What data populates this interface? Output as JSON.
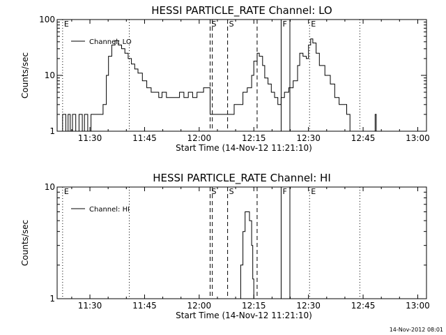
{
  "footer": {
    "timestamp": "14-Nov-2012 08:01"
  },
  "chart_data": [
    {
      "type": "line",
      "title": "HESSI PARTICLE_RATE Channel: LO",
      "xlabel": "Start Time (14-Nov-12 11:21:10)",
      "ylabel": "Counts/sec",
      "yscale": "log",
      "xlim": [
        11.35,
        13.04
      ],
      "ylim": [
        1,
        100
      ],
      "xticks": [
        11.5,
        11.75,
        12.0,
        12.25,
        12.5,
        12.75,
        13.0
      ],
      "xtick_labels": [
        "11:30",
        "11:45",
        "12:00",
        "12:15",
        "12:30",
        "12:45",
        "13:00"
      ],
      "yticks": [
        1,
        10,
        100
      ],
      "ytick_labels": [
        "1",
        "10",
        "100"
      ],
      "legend": {
        "position": "top-left",
        "entries": [
          "Channel: LO"
        ]
      },
      "series": [
        {
          "name": "Channel: LO",
          "x": [
            11.36,
            11.375,
            11.39,
            11.4,
            11.41,
            11.42,
            11.435,
            11.45,
            11.465,
            11.475,
            11.49,
            11.505,
            11.52,
            11.535,
            11.55,
            11.56,
            11.575,
            11.585,
            11.6,
            11.615,
            11.63,
            11.645,
            11.66,
            11.675,
            11.69,
            11.705,
            11.72,
            11.74,
            11.76,
            11.78,
            11.8,
            11.815,
            11.83,
            11.85,
            11.87,
            11.89,
            11.91,
            11.93,
            11.95,
            11.97,
            11.99,
            12.01,
            12.02,
            12.05,
            12.09,
            12.11,
            12.13,
            12.15,
            12.16,
            12.18,
            12.2,
            12.22,
            12.24,
            12.25,
            12.265,
            12.275,
            12.29,
            12.3,
            12.315,
            12.33,
            12.345,
            12.36,
            12.375,
            12.39,
            12.41,
            12.43,
            12.45,
            12.46,
            12.475,
            12.49,
            12.5,
            12.51,
            12.52,
            12.535,
            12.55,
            12.575,
            12.6,
            12.62,
            12.64,
            12.655,
            12.665,
            12.675,
            12.69,
            12.71,
            12.73,
            12.75,
            12.78,
            12.8,
            12.805,
            12.81
          ],
          "values": [
            1,
            2,
            1,
            2,
            1,
            2,
            1,
            2,
            1,
            2,
            1,
            2,
            2,
            2,
            2,
            3,
            10,
            22,
            35,
            42,
            35,
            30,
            25,
            20,
            16,
            13,
            11,
            8,
            6,
            5,
            5,
            4,
            5,
            4,
            4,
            4,
            5,
            4,
            5,
            4,
            5,
            5,
            6,
            2,
            2,
            2,
            2,
            2,
            3,
            3,
            5,
            6,
            10,
            18,
            25,
            22,
            15,
            9,
            7,
            5,
            4,
            3,
            4,
            5,
            6,
            8,
            15,
            25,
            22,
            20,
            35,
            45,
            38,
            25,
            15,
            10,
            7,
            4,
            3,
            3,
            3,
            2,
            1,
            1,
            1,
            1,
            1,
            1,
            2,
            1
          ]
        }
      ],
      "annotations": [
        {
          "x": 11.375,
          "label": "E",
          "style": "dotted"
        },
        {
          "x": 11.68,
          "label": "",
          "style": "dotted"
        },
        {
          "x": 12.05,
          "label": "S",
          "style": "dashed"
        },
        {
          "x": 12.06,
          "label": "",
          "style": "dashed"
        },
        {
          "x": 12.13,
          "label": "S",
          "style": "dashed"
        },
        {
          "x": 12.265,
          "label": "",
          "style": "dashed"
        },
        {
          "x": 12.375,
          "label": "F",
          "style": "solid"
        },
        {
          "x": 12.415,
          "label": "",
          "style": "solid"
        },
        {
          "x": 12.505,
          "label": "E",
          "style": "dotted"
        },
        {
          "x": 12.735,
          "label": "",
          "style": "dotted"
        }
      ]
    },
    {
      "type": "line",
      "title": "HESSI PARTICLE_RATE Channel: HI",
      "xlabel": "Start Time (14-Nov-12 11:21:10)",
      "ylabel": "Counts/sec",
      "yscale": "log",
      "xlim": [
        11.35,
        13.04
      ],
      "ylim": [
        1,
        10
      ],
      "xticks": [
        11.5,
        11.75,
        12.0,
        12.25,
        12.5,
        12.75,
        13.0
      ],
      "xtick_labels": [
        "11:30",
        "11:45",
        "12:00",
        "12:15",
        "12:30",
        "12:45",
        "13:00"
      ],
      "yticks": [
        1,
        10
      ],
      "ytick_labels": [
        "1",
        "10"
      ],
      "legend": {
        "position": "top-left",
        "entries": [
          "Channel: HI"
        ]
      },
      "series": [
        {
          "name": "Channel: HI",
          "x": [
            12.18,
            12.19,
            12.2,
            12.21,
            12.22,
            12.23,
            12.24,
            12.245,
            12.25
          ],
          "values": [
            1,
            2,
            4,
            6,
            6,
            5,
            3,
            1.5,
            1
          ]
        }
      ],
      "annotations": [
        {
          "x": 11.375,
          "label": "E",
          "style": "dotted"
        },
        {
          "x": 11.68,
          "label": "",
          "style": "dotted"
        },
        {
          "x": 12.05,
          "label": "S",
          "style": "dashed"
        },
        {
          "x": 12.06,
          "label": "",
          "style": "dashed"
        },
        {
          "x": 12.13,
          "label": "S",
          "style": "dashed"
        },
        {
          "x": 12.265,
          "label": "",
          "style": "dashed"
        },
        {
          "x": 12.375,
          "label": "F",
          "style": "solid"
        },
        {
          "x": 12.415,
          "label": "",
          "style": "solid"
        },
        {
          "x": 12.505,
          "label": "E",
          "style": "dotted"
        },
        {
          "x": 12.735,
          "label": "",
          "style": "dotted"
        }
      ]
    }
  ]
}
